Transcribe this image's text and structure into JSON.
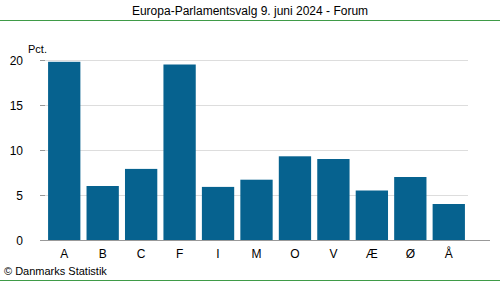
{
  "chart_data": {
    "type": "bar",
    "title": "Europa-Parlamentsvalg 9. juni 2024 - Forum",
    "y_label": "Pct.",
    "source": "© Danmarks Statistik",
    "categories": [
      "A",
      "B",
      "C",
      "F",
      "I",
      "M",
      "O",
      "V",
      "Æ",
      "Ø",
      "Å"
    ],
    "values": [
      19.8,
      6.0,
      7.9,
      19.5,
      5.9,
      6.7,
      9.3,
      9.0,
      5.5,
      7.0,
      4.0
    ],
    "color": "#06628f",
    "ylim": [
      0,
      20
    ],
    "yticks": [
      0,
      5,
      10,
      15,
      20
    ],
    "grid": true
  }
}
